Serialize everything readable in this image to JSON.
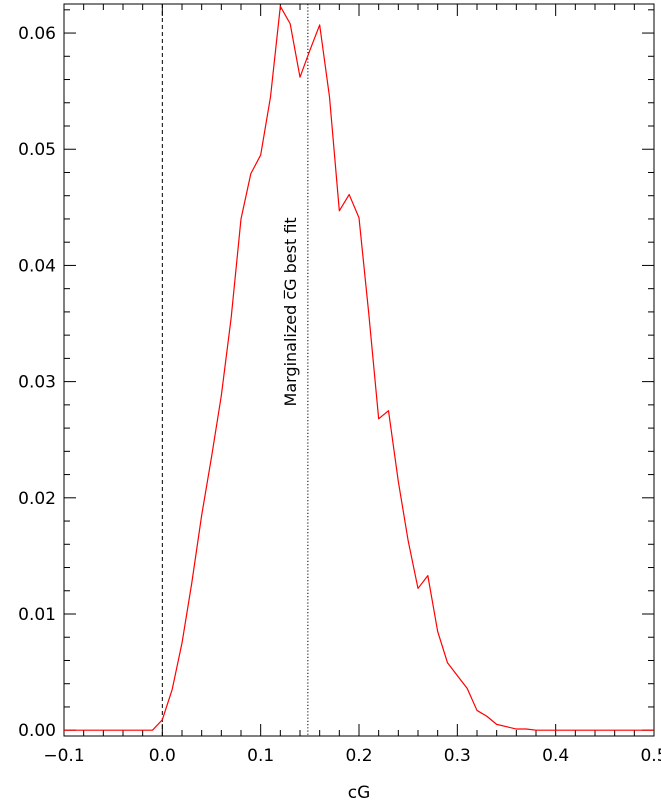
{
  "chart_data": {
    "type": "line",
    "title": "",
    "xlabel": "cG",
    "ylabel": "",
    "xlim": [
      -0.1,
      0.5
    ],
    "ylim": [
      -0.0005,
      0.0625
    ],
    "grid": false,
    "x_ticks": [
      -0.1,
      0.0,
      0.1,
      0.2,
      0.3,
      0.4,
      0.5
    ],
    "x_tick_labels": [
      "−0.1",
      "0.0",
      "0.1",
      "0.2",
      "0.3",
      "0.4",
      "0.5"
    ],
    "y_ticks": [
      0.0,
      0.01,
      0.02,
      0.03,
      0.04,
      0.05,
      0.06
    ],
    "y_tick_labels": [
      "0.00",
      "0.01",
      "0.02",
      "0.03",
      "0.04",
      "0.05",
      "0.06"
    ],
    "series": [
      {
        "color": "#ff0000",
        "x": [
          -0.1,
          -0.04,
          -0.01,
          0.0,
          0.01,
          0.02,
          0.03,
          0.04,
          0.05,
          0.06,
          0.07,
          0.08,
          0.09,
          0.1,
          0.11,
          0.12,
          0.13,
          0.14,
          0.15,
          0.16,
          0.17,
          0.18,
          0.19,
          0.2,
          0.21,
          0.22,
          0.23,
          0.24,
          0.25,
          0.26,
          0.27,
          0.28,
          0.29,
          0.3,
          0.31,
          0.32,
          0.33,
          0.34,
          0.35,
          0.36,
          0.37,
          0.38,
          0.39,
          0.4,
          0.5
        ],
        "y": [
          0.0,
          0.0,
          0.0,
          0.0009,
          0.0035,
          0.0075,
          0.0127,
          0.0185,
          0.0235,
          0.0288,
          0.0355,
          0.044,
          0.0479,
          0.0495,
          0.0545,
          0.0623,
          0.0608,
          0.0562,
          0.0585,
          0.0607,
          0.0545,
          0.0447,
          0.0461,
          0.0441,
          0.0358,
          0.0268,
          0.0275,
          0.0214,
          0.0163,
          0.0122,
          0.0133,
          0.0085,
          0.0058,
          0.0047,
          0.0036,
          0.0017,
          0.0012,
          0.0005,
          0.0003,
          0.0001,
          0.0001,
          0.0,
          0.0,
          0.0,
          0.0
        ]
      }
    ],
    "reference_lines": [
      {
        "x": 0.0,
        "style": "dashed",
        "label": ""
      },
      {
        "x": 0.148,
        "style": "dotted",
        "label": "Marginalized c̅G best fit"
      }
    ]
  }
}
